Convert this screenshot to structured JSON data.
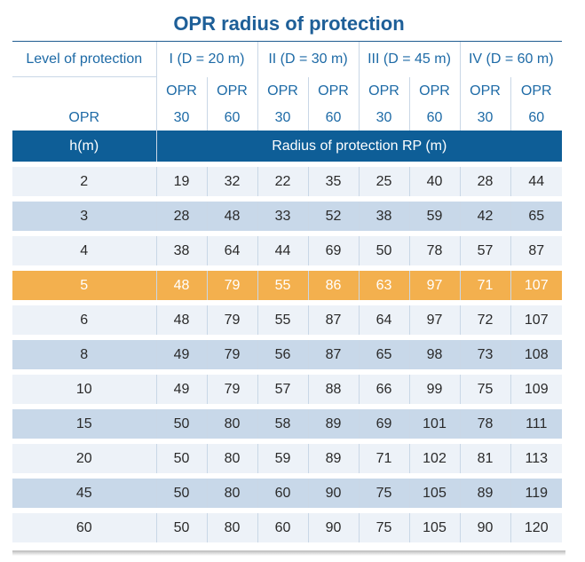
{
  "title": "OPR radius of protection",
  "level_label": "Level of protection",
  "levels": [
    "I (D = 20 m)",
    "II (D = 30 m)",
    "III (D = 45 m)",
    "IV (D = 60 m)"
  ],
  "opr_row_label": "OPR",
  "opr_name": "OPR",
  "opr_values": [
    "30",
    "60",
    "30",
    "60",
    "30",
    "60",
    "30",
    "60"
  ],
  "h_label": "h(m)",
  "rp_label": "Radius of protection RP (m)",
  "highlight_color": "#f3b04e",
  "header_color": "#0e5e97",
  "rows": [
    {
      "h": "2",
      "v": [
        "19",
        "32",
        "22",
        "35",
        "25",
        "40",
        "28",
        "44"
      ]
    },
    {
      "h": "3",
      "v": [
        "28",
        "48",
        "33",
        "52",
        "38",
        "59",
        "42",
        "65"
      ]
    },
    {
      "h": "4",
      "v": [
        "38",
        "64",
        "44",
        "69",
        "50",
        "78",
        "57",
        "87"
      ]
    },
    {
      "h": "5",
      "v": [
        "48",
        "79",
        "55",
        "86",
        "63",
        "97",
        "71",
        "107"
      ]
    },
    {
      "h": "6",
      "v": [
        "48",
        "79",
        "55",
        "87",
        "64",
        "97",
        "72",
        "107"
      ]
    },
    {
      "h": "8",
      "v": [
        "49",
        "79",
        "56",
        "87",
        "65",
        "98",
        "73",
        "108"
      ]
    },
    {
      "h": "10",
      "v": [
        "49",
        "79",
        "57",
        "88",
        "66",
        "99",
        "75",
        "109"
      ]
    },
    {
      "h": "15",
      "v": [
        "50",
        "80",
        "58",
        "89",
        "69",
        "101",
        "78",
        "111"
      ]
    },
    {
      "h": "20",
      "v": [
        "50",
        "80",
        "59",
        "89",
        "71",
        "102",
        "81",
        "113"
      ]
    },
    {
      "h": "45",
      "v": [
        "50",
        "80",
        "60",
        "90",
        "75",
        "105",
        "89",
        "119"
      ]
    },
    {
      "h": "60",
      "v": [
        "50",
        "80",
        "60",
        "90",
        "75",
        "105",
        "90",
        "120"
      ]
    }
  ]
}
